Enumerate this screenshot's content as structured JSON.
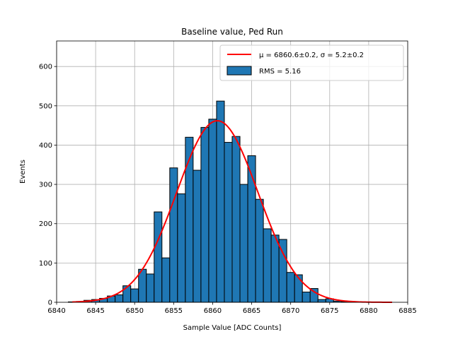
{
  "chart_data": {
    "type": "bar",
    "title": "Baseline value, Ped Run",
    "xlabel": "Sample Value [ADC Counts]",
    "ylabel": "Events",
    "xlim": [
      6840,
      6885
    ],
    "ylim": [
      0,
      665
    ],
    "xticks": [
      6840,
      6845,
      6850,
      6855,
      6860,
      6865,
      6870,
      6875,
      6880,
      6885
    ],
    "yticks": [
      0,
      100,
      200,
      300,
      400,
      500,
      600
    ],
    "grid": true,
    "legend_position": "top-right",
    "bin_width": 1,
    "bins": [
      6842,
      6843,
      6844,
      6845,
      6846,
      6847,
      6848,
      6849,
      6850,
      6851,
      6852,
      6853,
      6854,
      6855,
      6856,
      6857,
      6858,
      6859,
      6860,
      6861,
      6862,
      6863,
      6864,
      6865,
      6866,
      6867,
      6868,
      6869,
      6870,
      6871,
      6872,
      6873,
      6874,
      6875,
      6876,
      6877,
      6878,
      6879,
      6880,
      6881,
      6882
    ],
    "counts": [
      1,
      2,
      5,
      7,
      10,
      16,
      19,
      42,
      34,
      84,
      72,
      230,
      113,
      342,
      276,
      420,
      336,
      445,
      466,
      512,
      407,
      422,
      300,
      373,
      262,
      187,
      171,
      160,
      76,
      70,
      26,
      35,
      7,
      9,
      3,
      2,
      1,
      0,
      0,
      0,
      0
    ],
    "series": [
      {
        "name": "RMS = 5.16",
        "type": "histogram",
        "color": "#1f77b4",
        "edgecolor": "#000000"
      },
      {
        "name": "μ = 6860.6±0.2, σ = 5.2±0.2",
        "type": "gaussian-fit",
        "color": "#ff0000",
        "mu": 6860.6,
        "sigma": 5.2,
        "amplitude": 462,
        "x_range": [
          6842,
          6883
        ]
      }
    ]
  }
}
